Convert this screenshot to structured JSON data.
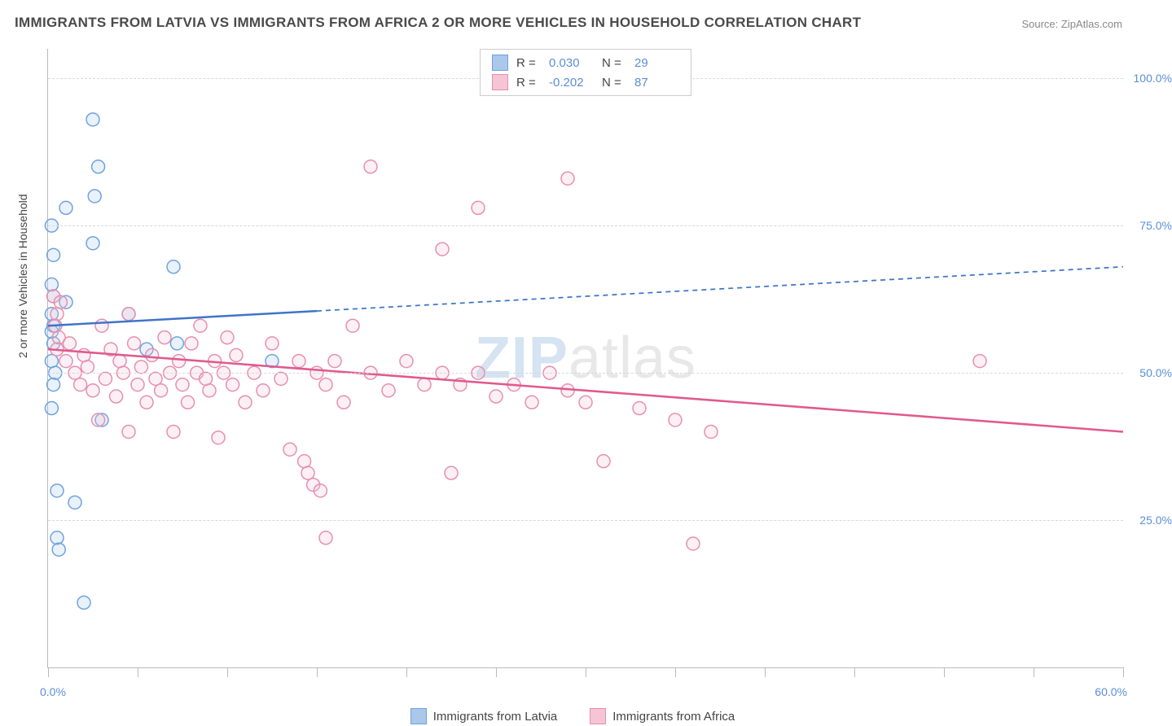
{
  "title": "IMMIGRANTS FROM LATVIA VS IMMIGRANTS FROM AFRICA 2 OR MORE VEHICLES IN HOUSEHOLD CORRELATION CHART",
  "source_label": "Source: ",
  "source_name": "ZipAtlas.com",
  "ylabel": "2 or more Vehicles in Household",
  "watermark_a": "ZIP",
  "watermark_b": "atlas",
  "chart": {
    "type": "scatter",
    "xlim": [
      0,
      60
    ],
    "ylim": [
      0,
      105
    ],
    "x_ticks": [
      0,
      5,
      10,
      15,
      20,
      25,
      30,
      35,
      40,
      45,
      50,
      55,
      60
    ],
    "x_tick_labels": {
      "0": "0.0%",
      "60": "60.0%"
    },
    "y_gridlines": [
      25,
      50,
      75,
      100
    ],
    "y_tick_labels": {
      "25": "25.0%",
      "50": "50.0%",
      "75": "75.0%",
      "100": "100.0%"
    },
    "background_color": "#ffffff",
    "grid_color": "#d8d8d8",
    "axis_color": "#bbbbbb",
    "tick_label_color": "#5b8fd6",
    "marker_radius": 8,
    "marker_stroke_width": 1.5,
    "marker_fill_opacity": 0.25,
    "series": [
      {
        "id": "latvia",
        "label": "Immigrants from Latvia",
        "color_stroke": "#6fa3dd",
        "color_fill": "#a9c8ea",
        "R_label": "R =",
        "R_value": "0.030",
        "N_label": "N =",
        "N_value": "29",
        "trend": {
          "x1": 0,
          "y1": 58,
          "x2_solid": 15,
          "y2_solid": 60.5,
          "x2_dash": 60,
          "y2_dash": 68,
          "color": "#3f74c9",
          "width": 2.5,
          "dash": "6,5"
        },
        "points": [
          [
            0.2,
            75
          ],
          [
            0.3,
            70
          ],
          [
            0.2,
            65
          ],
          [
            0.3,
            63
          ],
          [
            0.2,
            60
          ],
          [
            0.3,
            58
          ],
          [
            0.2,
            57
          ],
          [
            0.3,
            55
          ],
          [
            0.2,
            52
          ],
          [
            0.4,
            50
          ],
          [
            0.3,
            48
          ],
          [
            0.2,
            44
          ],
          [
            0.5,
            30
          ],
          [
            0.5,
            22
          ],
          [
            0.6,
            20
          ],
          [
            1.0,
            78
          ],
          [
            1.5,
            28
          ],
          [
            2.0,
            11
          ],
          [
            2.5,
            93
          ],
          [
            2.8,
            85
          ],
          [
            2.6,
            80
          ],
          [
            2.5,
            72
          ],
          [
            3.0,
            42
          ],
          [
            4.5,
            60
          ],
          [
            5.5,
            54
          ],
          [
            7.0,
            68
          ],
          [
            7.2,
            55
          ],
          [
            12.5,
            52
          ],
          [
            1.0,
            62
          ]
        ]
      },
      {
        "id": "africa",
        "label": "Immigrants from Africa",
        "color_stroke": "#e68fb0",
        "color_fill": "#f5c4d5",
        "R_label": "R =",
        "R_value": "-0.202",
        "N_label": "N =",
        "N_value": "87",
        "trend": {
          "x1": 0,
          "y1": 54,
          "x2_solid": 60,
          "y2_solid": 40,
          "color": "#e05a8c",
          "width": 2.5
        },
        "points": [
          [
            0.3,
            63
          ],
          [
            0.5,
            60
          ],
          [
            0.4,
            58
          ],
          [
            0.6,
            56
          ],
          [
            0.5,
            54
          ],
          [
            0.7,
            62
          ],
          [
            1.0,
            52
          ],
          [
            1.2,
            55
          ],
          [
            1.5,
            50
          ],
          [
            1.8,
            48
          ],
          [
            2.0,
            53
          ],
          [
            2.2,
            51
          ],
          [
            2.5,
            47
          ],
          [
            2.8,
            42
          ],
          [
            3.0,
            58
          ],
          [
            3.2,
            49
          ],
          [
            3.5,
            54
          ],
          [
            3.8,
            46
          ],
          [
            4.0,
            52
          ],
          [
            4.2,
            50
          ],
          [
            4.5,
            40
          ],
          [
            4.8,
            55
          ],
          [
            5.0,
            48
          ],
          [
            5.2,
            51
          ],
          [
            5.5,
            45
          ],
          [
            5.8,
            53
          ],
          [
            6.0,
            49
          ],
          [
            6.3,
            47
          ],
          [
            6.5,
            56
          ],
          [
            6.8,
            50
          ],
          [
            7.0,
            40
          ],
          [
            7.3,
            52
          ],
          [
            7.5,
            48
          ],
          [
            7.8,
            45
          ],
          [
            8.0,
            55
          ],
          [
            8.3,
            50
          ],
          [
            8.5,
            58
          ],
          [
            8.8,
            49
          ],
          [
            9.0,
            47
          ],
          [
            9.3,
            52
          ],
          [
            9.5,
            39
          ],
          [
            9.8,
            50
          ],
          [
            10.0,
            56
          ],
          [
            10.3,
            48
          ],
          [
            10.5,
            53
          ],
          [
            11.0,
            45
          ],
          [
            11.5,
            50
          ],
          [
            12.0,
            47
          ],
          [
            12.5,
            55
          ],
          [
            13.0,
            49
          ],
          [
            13.5,
            37
          ],
          [
            14.0,
            52
          ],
          [
            14.3,
            35
          ],
          [
            14.5,
            33
          ],
          [
            14.8,
            31
          ],
          [
            15.0,
            50
          ],
          [
            15.2,
            30
          ],
          [
            15.5,
            48
          ],
          [
            15.5,
            22
          ],
          [
            16.0,
            52
          ],
          [
            16.5,
            45
          ],
          [
            17.0,
            58
          ],
          [
            18.0,
            50
          ],
          [
            18.0,
            85
          ],
          [
            19.0,
            47
          ],
          [
            20.0,
            52
          ],
          [
            21.0,
            48
          ],
          [
            22.0,
            50
          ],
          [
            22.0,
            71
          ],
          [
            22.5,
            33
          ],
          [
            23.0,
            48
          ],
          [
            24.0,
            50
          ],
          [
            24.0,
            78
          ],
          [
            25.0,
            46
          ],
          [
            26.0,
            48
          ],
          [
            27.0,
            45
          ],
          [
            28.0,
            50
          ],
          [
            29.0,
            47
          ],
          [
            29.0,
            83
          ],
          [
            30.0,
            45
          ],
          [
            31.0,
            35
          ],
          [
            33.0,
            44
          ],
          [
            35.0,
            42
          ],
          [
            36.0,
            21
          ],
          [
            37.0,
            40
          ],
          [
            52.0,
            52
          ],
          [
            4.5,
            60
          ]
        ]
      }
    ]
  }
}
